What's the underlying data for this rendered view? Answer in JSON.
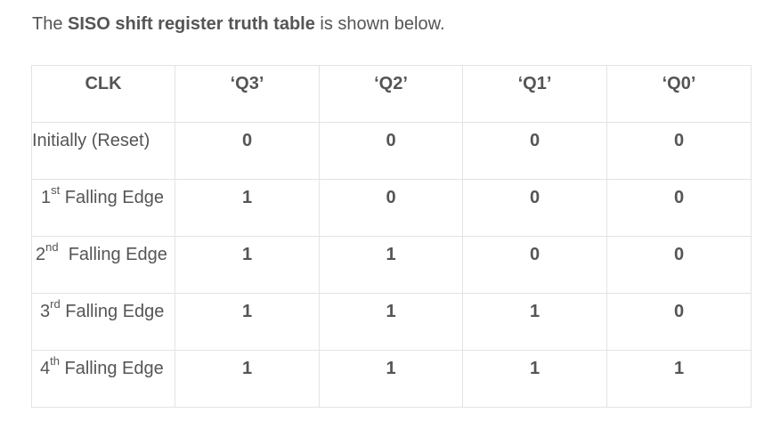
{
  "intro": {
    "prefix": "The ",
    "bold": "SISO shift register truth table",
    "suffix": " is shown below."
  },
  "table": {
    "headers": [
      "CLK",
      "‘Q3’",
      "‘Q2’",
      "‘Q1’",
      "‘Q0’"
    ],
    "rows": [
      {
        "clk_num": "",
        "clk_sup": "",
        "clk_text": "Initially (Reset)",
        "values": [
          "0",
          "0",
          "0",
          "0"
        ],
        "bold": [
          true,
          true,
          true,
          true
        ]
      },
      {
        "clk_num": "1",
        "clk_sup": "st",
        "clk_text": " Falling Edge",
        "values": [
          "1",
          "0",
          "0",
          "0"
        ],
        "bold": [
          true,
          true,
          true,
          true
        ]
      },
      {
        "clk_num": "2",
        "clk_sup": "nd",
        "clk_text": "  Falling Edge",
        "values": [
          "1",
          "1",
          "0",
          "0"
        ],
        "bold": [
          true,
          true,
          true,
          true
        ]
      },
      {
        "clk_num": "3",
        "clk_sup": "rd",
        "clk_text": " Falling Edge",
        "values": [
          "1",
          "1",
          "1",
          "0"
        ],
        "bold": [
          true,
          true,
          true,
          true
        ]
      },
      {
        "clk_num": "4",
        "clk_sup": "th",
        "clk_text": " Falling Edge",
        "values": [
          "1",
          "1",
          "1",
          "1"
        ],
        "bold": [
          true,
          true,
          true,
          true
        ]
      }
    ]
  }
}
